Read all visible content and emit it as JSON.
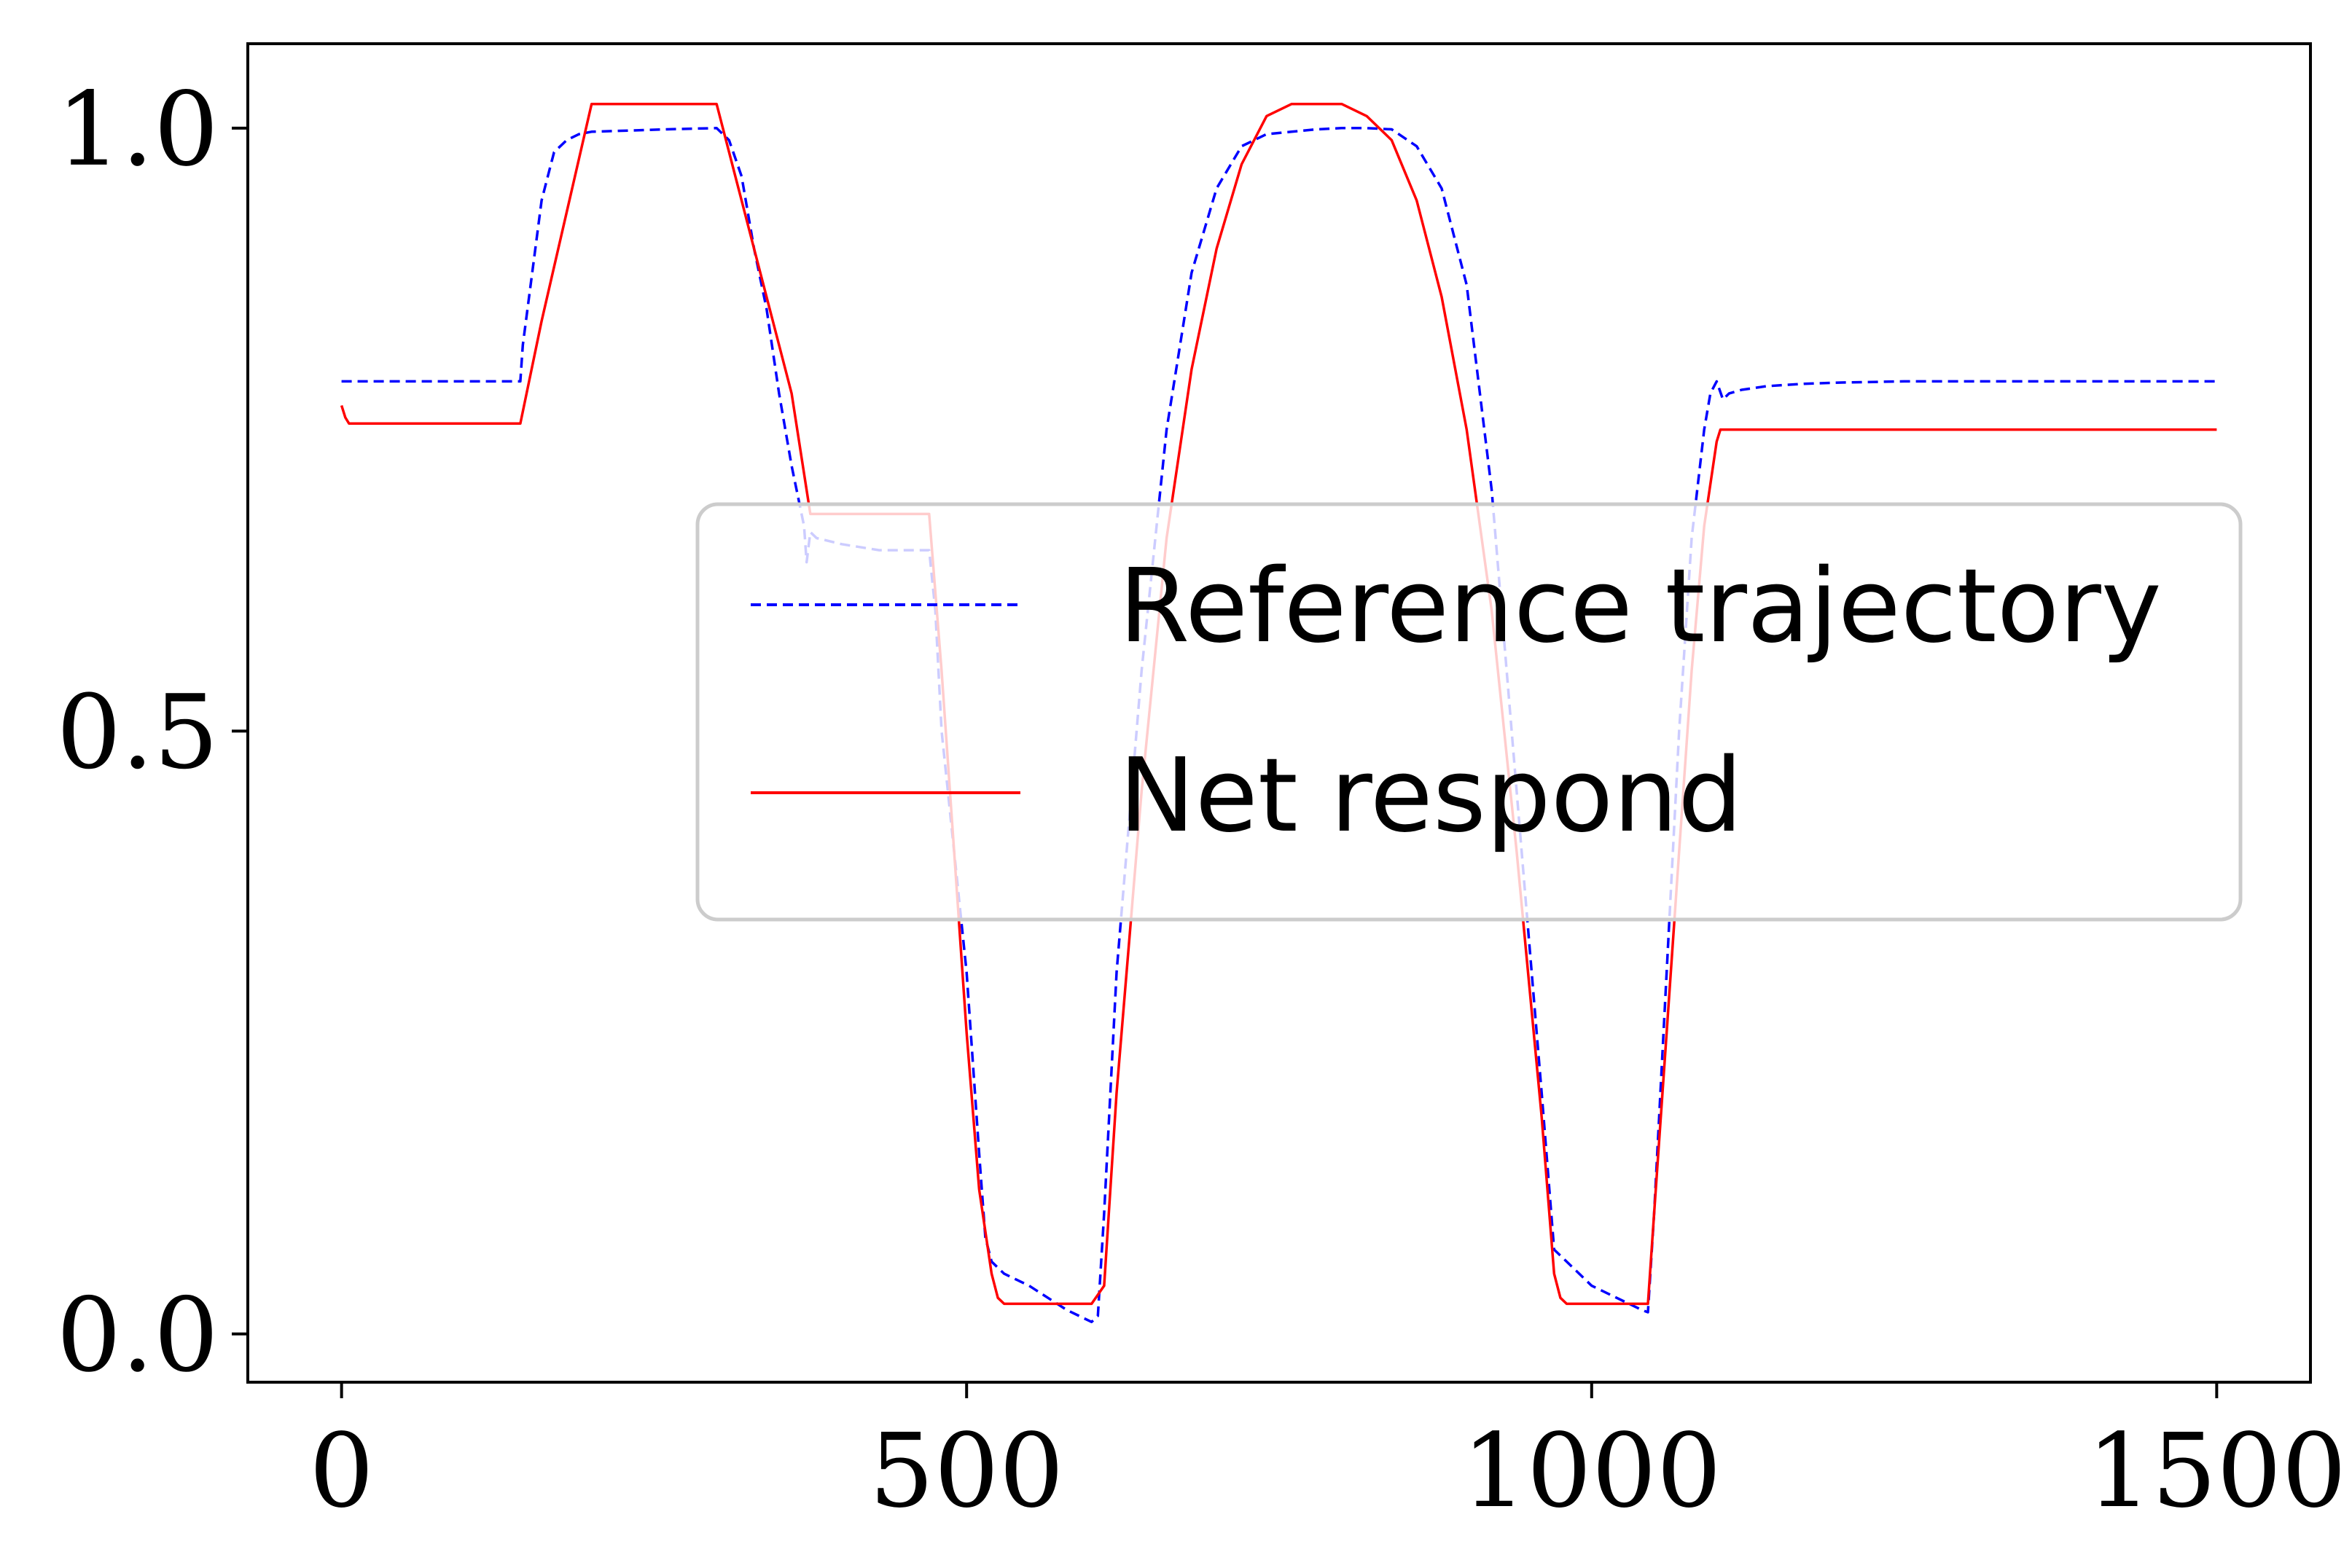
{
  "chart_data": {
    "type": "line",
    "title": "",
    "xlabel": "",
    "ylabel": "",
    "xlim": [
      -75,
      1575
    ],
    "ylim": [
      -0.04,
      1.07
    ],
    "xticks": [
      0,
      500,
      1000,
      1500
    ],
    "xtick_labels": [
      "0",
      "500",
      "1000",
      "1500"
    ],
    "yticks": [
      0.0,
      0.5,
      1.0
    ],
    "ytick_labels": [
      "0.0",
      "0.5",
      "1.0"
    ],
    "grid": false,
    "legend": {
      "placement": "center-right",
      "entries": [
        "Reference trajectory",
        "Net respond"
      ]
    },
    "series": [
      {
        "name": "Reference trajectory",
        "color": "#0000ff",
        "style": "dashed",
        "x": [
          0,
          143,
          145,
          150,
          155,
          160,
          165,
          170,
          180,
          190,
          200,
          230,
          260,
          300,
          310,
          320,
          330,
          340,
          350,
          360,
          370,
          372,
          375,
          380,
          400,
          430,
          470,
          475,
          480,
          490,
          500,
          510,
          515,
          520,
          530,
          550,
          580,
          600,
          605,
          610,
          620,
          640,
          660,
          680,
          700,
          720,
          740,
          760,
          780,
          800,
          820,
          840,
          860,
          880,
          900,
          920,
          940,
          960,
          970,
          975,
          980,
          1000,
          1020,
          1040,
          1045,
          1050,
          1060,
          1070,
          1080,
          1090,
          1095,
          1100,
          1105,
          1110,
          1120,
          1140,
          1170,
          1200,
          1250,
          1300,
          1400,
          1500
        ],
        "y": [
          0.79,
          0.79,
          0.82,
          0.86,
          0.9,
          0.94,
          0.96,
          0.98,
          0.99,
          0.995,
          0.997,
          0.998,
          0.999,
          1.0,
          0.99,
          0.96,
          0.9,
          0.85,
          0.78,
          0.72,
          0.67,
          0.64,
          0.665,
          0.66,
          0.655,
          0.65,
          0.65,
          0.6,
          0.5,
          0.4,
          0.3,
          0.15,
          0.08,
          0.06,
          0.05,
          0.04,
          0.02,
          0.01,
          0.015,
          0.1,
          0.3,
          0.55,
          0.75,
          0.88,
          0.95,
          0.985,
          0.995,
          0.997,
          0.999,
          1.0,
          1.0,
          0.999,
          0.985,
          0.95,
          0.87,
          0.7,
          0.45,
          0.2,
          0.07,
          0.065,
          0.06,
          0.04,
          0.03,
          0.02,
          0.018,
          0.1,
          0.3,
          0.5,
          0.66,
          0.75,
          0.78,
          0.79,
          0.775,
          0.78,
          0.783,
          0.786,
          0.788,
          0.789,
          0.79,
          0.79,
          0.79,
          0.79
        ]
      },
      {
        "name": "Net respond",
        "color": "#ff0000",
        "style": "solid",
        "x": [
          0,
          3,
          6,
          10,
          143,
          160,
          180,
          200,
          250,
          300,
          330,
          360,
          375,
          450,
          470,
          480,
          490,
          500,
          510,
          520,
          525,
          530,
          600,
          610,
          620,
          640,
          660,
          680,
          700,
          720,
          740,
          760,
          800,
          820,
          840,
          860,
          880,
          900,
          920,
          940,
          960,
          970,
          975,
          980,
          1000,
          1020,
          1045,
          1050,
          1060,
          1070,
          1080,
          1090,
          1100,
          1103,
          1110,
          1200,
          1300,
          1400,
          1500
        ],
        "y": [
          0.77,
          0.76,
          0.755,
          0.755,
          0.755,
          0.84,
          0.93,
          1.02,
          1.02,
          1.02,
          0.9,
          0.78,
          0.68,
          0.68,
          0.68,
          0.55,
          0.4,
          0.25,
          0.12,
          0.05,
          0.03,
          0.025,
          0.025,
          0.04,
          0.2,
          0.45,
          0.66,
          0.8,
          0.9,
          0.97,
          1.01,
          1.02,
          1.02,
          1.01,
          0.99,
          0.94,
          0.86,
          0.75,
          0.6,
          0.4,
          0.18,
          0.05,
          0.03,
          0.025,
          0.025,
          0.025,
          0.025,
          0.1,
          0.25,
          0.4,
          0.55,
          0.67,
          0.74,
          0.75,
          0.75,
          0.75,
          0.75,
          0.75,
          0.75
        ]
      }
    ]
  }
}
